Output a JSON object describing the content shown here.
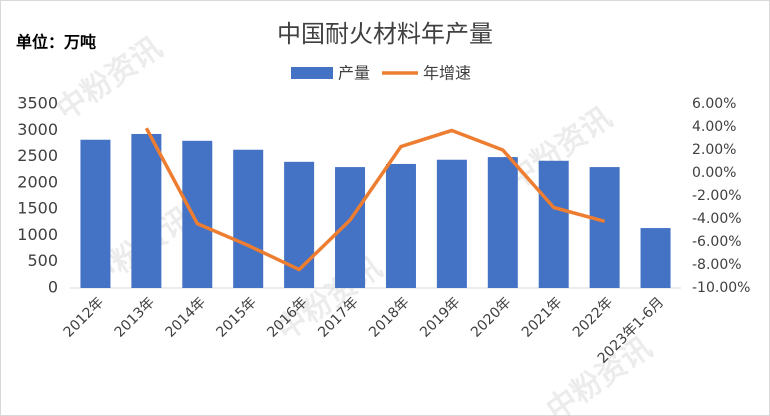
{
  "chart_data": {
    "type": "bar-line",
    "title": "中国耐火材料年产量",
    "unit_label": "单位：万吨",
    "watermark": "中粉资讯",
    "categories": [
      "2012年",
      "2013年",
      "2014年",
      "2015年",
      "2016年",
      "2017年",
      "2018年",
      "2019年",
      "2020年",
      "2021年",
      "2022年",
      "2023年1-6月"
    ],
    "series": [
      {
        "name": "产量",
        "type": "bar",
        "color": "#4472c4",
        "values": [
          2820,
          2930,
          2800,
          2630,
          2400,
          2300,
          2360,
          2440,
          2490,
          2420,
          2300,
          1140
        ]
      },
      {
        "name": "年增速",
        "type": "line",
        "axis": "y2",
        "color": "#ed7d31",
        "values": [
          null,
          3.9,
          -4.4,
          -6.3,
          -8.4,
          -4.1,
          2.3,
          3.7,
          2.0,
          -3.0,
          -4.2,
          null
        ]
      }
    ],
    "ylim": [
      0,
      3500
    ],
    "yticks": [
      0,
      500,
      1000,
      1500,
      2000,
      2500,
      3000,
      3500
    ],
    "y2lim": [
      -10,
      6
    ],
    "y2ticks": [
      {
        "value": -10,
        "label": "-10.00%"
      },
      {
        "value": -8,
        "label": "-8.00%"
      },
      {
        "value": -6,
        "label": "-6.00%"
      },
      {
        "value": -4,
        "label": "-4.00%"
      },
      {
        "value": -2,
        "label": "-2.00%"
      },
      {
        "value": 0,
        "label": "0.00%"
      },
      {
        "value": 2,
        "label": "2.00%"
      },
      {
        "value": 4,
        "label": "4.00%"
      },
      {
        "value": 6,
        "label": "6.00%"
      }
    ],
    "legend": "top"
  }
}
